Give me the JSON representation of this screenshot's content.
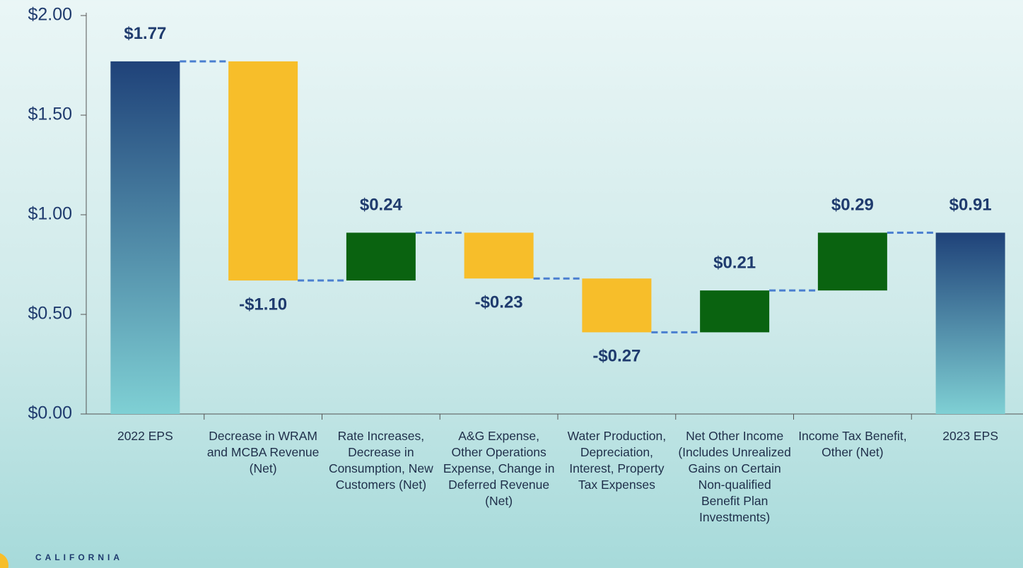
{
  "chart_data": {
    "type": "waterfall",
    "categories": [
      "2022 EPS",
      "Decrease in WRAM and MCBA Revenue (Net)",
      "Rate Increases, Decrease in Consumption, New Customers (Net)",
      "A&G Expense, Other Operations Expense, Change in Deferred Revenue (Net)",
      "Water Production, Depreciation, Interest, Property Tax Expenses",
      "Net Other Income (Includes Unrealized Gains on Certain Non-qualified Benefit Plan Investments)",
      "Income Tax Benefit, Other (Net)",
      "2023 EPS"
    ],
    "values": [
      1.77,
      -1.1,
      0.24,
      -0.23,
      -0.27,
      0.21,
      0.29,
      0.91
    ],
    "value_labels": [
      "$1.77",
      "-$1.10",
      "$0.24",
      "-$0.23",
      "-$0.27",
      "$0.21",
      "$0.29",
      "$0.91"
    ],
    "colors": {
      "total_top": "#1f4279",
      "total_bottom": "#7fd0d4",
      "increase": "#0a6310",
      "decrease": "#f7be2a",
      "connector": "#4a7fd0"
    },
    "ylim": [
      0,
      2
    ],
    "yticks": [
      {
        "value": 0,
        "label": "$0.00"
      },
      {
        "value": 0.5,
        "label": "$0.50"
      },
      {
        "value": 1,
        "label": "$1.00"
      },
      {
        "value": 1.5,
        "label": "$1.50"
      },
      {
        "value": 2,
        "label": "$2.00"
      }
    ],
    "grid": false
  },
  "logo_text": "CALIFORNIA"
}
